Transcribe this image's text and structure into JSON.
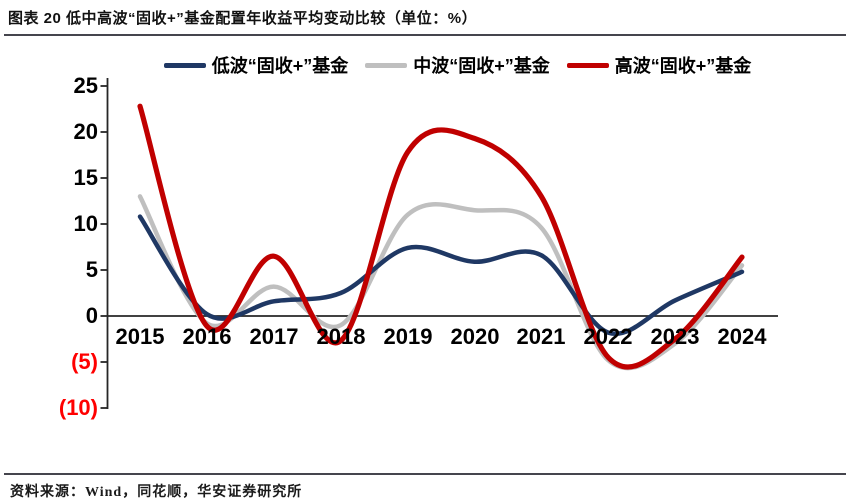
{
  "title": "图表 20 低中高波“固收+”基金配置年收益平均变动比较（单位：%）",
  "source": "资料来源：Wind，同花顺，华安证券研究所",
  "chart_data": {
    "type": "line",
    "title": "低中高波“固收+”基金配置年收益平均变动比较",
    "unit": "%",
    "categories": [
      "2015",
      "2016",
      "2017",
      "2018",
      "2019",
      "2020",
      "2021",
      "2022",
      "2023",
      "2024"
    ],
    "series": [
      {
        "name": "低波“固收+”基金",
        "color": "#1f3864",
        "stroke_width": 4.5,
        "values": [
          10.8,
          0.2,
          1.6,
          2.5,
          7.4,
          5.9,
          6.6,
          -1.8,
          1.7,
          4.8
        ]
      },
      {
        "name": "中波“固收+”基金",
        "color": "#bfbfbf",
        "stroke_width": 4.5,
        "values": [
          13.0,
          -0.8,
          3.2,
          -1.0,
          11.0,
          11.5,
          9.6,
          -4.8,
          -3.0,
          5.5
        ]
      },
      {
        "name": "高波“固收+”基金",
        "color": "#c00000",
        "stroke_width": 5.2,
        "values": [
          22.8,
          -1.1,
          6.5,
          -2.7,
          17.8,
          19.3,
          13.0,
          -4.5,
          -2.5,
          6.4
        ]
      }
    ],
    "ylim": [
      -10,
      25
    ],
    "yticks": [
      25,
      20,
      15,
      10,
      5,
      0,
      -5,
      -10
    ],
    "ytick_labels": [
      "25",
      "20",
      "15",
      "10",
      "5",
      "0",
      "(5)",
      "(10)"
    ],
    "negative_tick_color": "#ff0000",
    "axis_color": "#262626",
    "legend_position": "top",
    "grid": false,
    "curve_style": "smooth-spline"
  }
}
